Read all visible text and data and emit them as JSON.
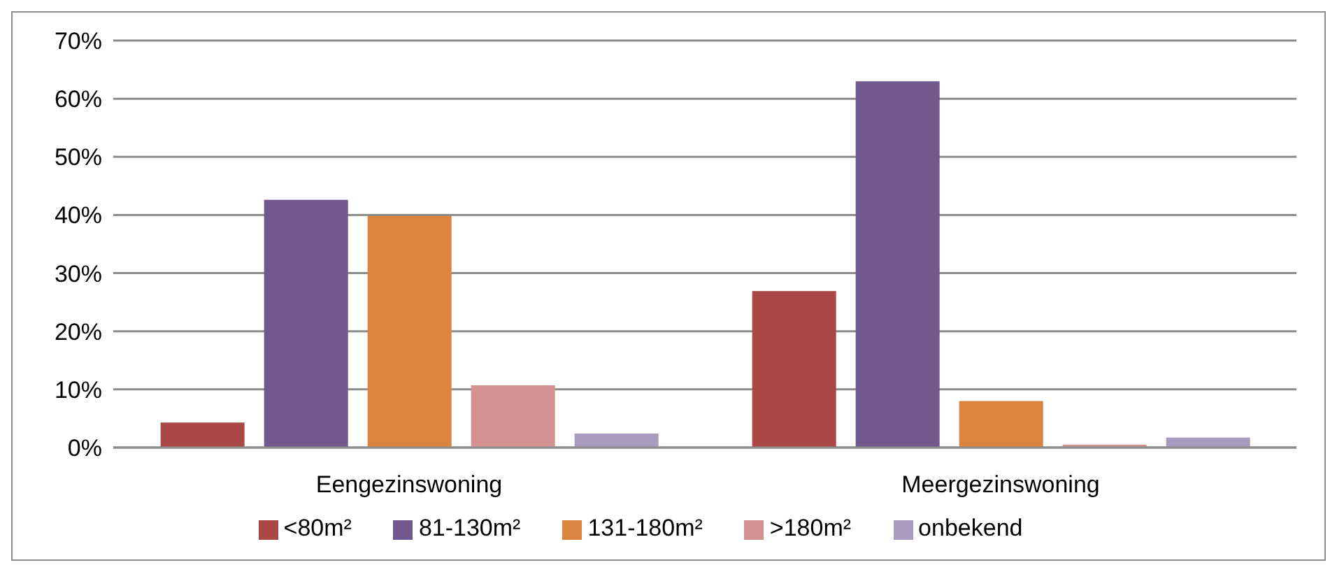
{
  "chart_data": {
    "type": "bar",
    "categories": [
      "Eengezinswoning",
      "Meergezinswoning"
    ],
    "series": [
      {
        "name": "<80m²",
        "color": "#a94846",
        "values": [
          4.3,
          26.9
        ]
      },
      {
        "name": "81-130m²",
        "color": "#71598e",
        "values": [
          42.6,
          63.0
        ]
      },
      {
        "name": "131-180m²",
        "color": "#db843f",
        "values": [
          39.8,
          8.0
        ]
      },
      {
        "name": ">180m²",
        "color": "#d39191",
        "values": [
          10.7,
          0.5
        ]
      },
      {
        "name": "onbekend",
        "color": "#a79bbf",
        "values": [
          2.4,
          1.7
        ]
      }
    ],
    "ylim": [
      0,
      70
    ],
    "yticks": [
      {
        "value": 0,
        "label": "0%"
      },
      {
        "value": 10,
        "label": "10%"
      },
      {
        "value": 20,
        "label": "20%"
      },
      {
        "value": 30,
        "label": "30%"
      },
      {
        "value": 40,
        "label": "40%"
      },
      {
        "value": 50,
        "label": "50%"
      },
      {
        "value": 60,
        "label": "60%"
      },
      {
        "value": 70,
        "label": "70%"
      }
    ],
    "grid": "y",
    "legend": "bottom"
  }
}
